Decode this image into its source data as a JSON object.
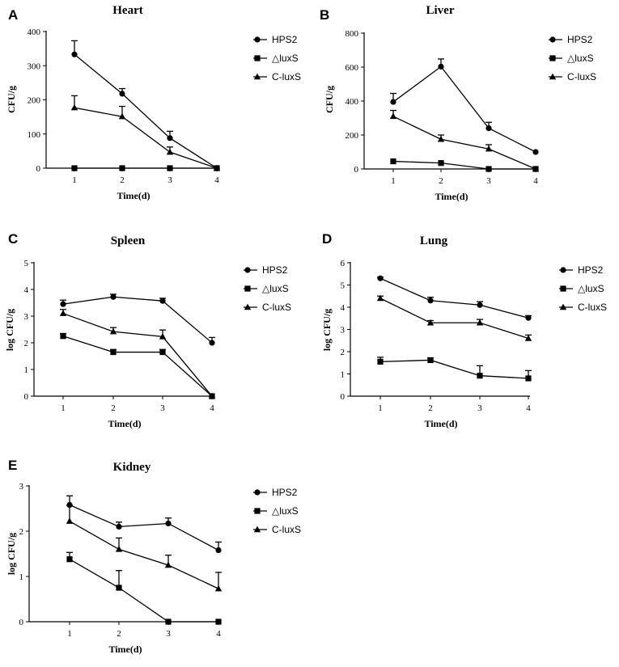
{
  "chart_data": [
    {
      "type": "line",
      "panel": "A",
      "title": "Heart",
      "xlabel": "Time(d)",
      "ylabel": "CFU/g",
      "x": [
        1,
        2,
        3,
        4
      ],
      "xticks": [
        "1",
        "2",
        "3",
        "4"
      ],
      "ylim": [
        0,
        400
      ],
      "yticks": [
        "0",
        "100",
        "200",
        "300",
        "400"
      ],
      "legend": "right",
      "series": [
        {
          "name": "HPS2",
          "marker": "circle",
          "values": [
            333,
            218,
            88,
            0
          ],
          "errors": [
            40,
            15,
            20,
            0
          ]
        },
        {
          "name": "△luxS",
          "marker": "square",
          "values": [
            0,
            0,
            0,
            0
          ],
          "errors": [
            0,
            0,
            0,
            0
          ]
        },
        {
          "name": "C-luxS",
          "marker": "triangle",
          "values": [
            177,
            151,
            47,
            0
          ],
          "errors": [
            35,
            30,
            15,
            0
          ]
        }
      ]
    },
    {
      "type": "line",
      "panel": "B",
      "title": "Liver",
      "xlabel": "Time(d)",
      "ylabel": "CFU/g",
      "x": [
        1,
        2,
        3,
        4
      ],
      "xticks": [
        "1",
        "2",
        "3",
        "4"
      ],
      "ylim": [
        0,
        800
      ],
      "yticks": [
        "0",
        "200",
        "400",
        "600",
        "800"
      ],
      "legend": "right",
      "series": [
        {
          "name": "HPS2",
          "marker": "circle",
          "values": [
            395,
            603,
            240,
            100
          ],
          "errors": [
            50,
            45,
            35,
            0
          ]
        },
        {
          "name": "△luxS",
          "marker": "square",
          "values": [
            45,
            35,
            0,
            0
          ],
          "errors": [
            0,
            0,
            0,
            0
          ]
        },
        {
          "name": "C-luxS",
          "marker": "triangle",
          "values": [
            310,
            175,
            118,
            0
          ],
          "errors": [
            35,
            25,
            25,
            0
          ]
        }
      ]
    },
    {
      "type": "line",
      "panel": "C",
      "title": "Spleen",
      "xlabel": "Time(d)",
      "ylabel": "log CFU/g",
      "x": [
        1,
        2,
        3,
        4
      ],
      "xticks": [
        "1",
        "2",
        "3",
        "4"
      ],
      "ylim": [
        0,
        5
      ],
      "yticks": [
        "0",
        "1",
        "2",
        "3",
        "4",
        "5"
      ],
      "legend": "right",
      "series": [
        {
          "name": "HPS2",
          "marker": "circle",
          "values": [
            3.45,
            3.72,
            3.57,
            2.0
          ],
          "errors": [
            0.15,
            0.1,
            0.1,
            0.2
          ]
        },
        {
          "name": "△luxS",
          "marker": "square",
          "values": [
            2.25,
            1.65,
            1.65,
            0
          ],
          "errors": [
            0.1,
            0.1,
            0.1,
            0
          ]
        },
        {
          "name": "C-luxS",
          "marker": "triangle",
          "values": [
            3.1,
            2.42,
            2.23,
            0
          ],
          "errors": [
            0.15,
            0.15,
            0.25,
            0
          ]
        }
      ]
    },
    {
      "type": "line",
      "panel": "D",
      "title": "Lung",
      "xlabel": "Time(d)",
      "ylabel": "log CFU/g",
      "x": [
        1,
        2,
        3,
        4
      ],
      "xticks": [
        "1",
        "2",
        "3",
        "4"
      ],
      "ylim": [
        0,
        6
      ],
      "yticks": [
        "0",
        "1",
        "2",
        "3",
        "4",
        "5",
        "6"
      ],
      "legend": "right",
      "series": [
        {
          "name": "HPS2",
          "marker": "circle",
          "values": [
            5.3,
            4.3,
            4.1,
            3.52
          ],
          "errors": [
            0.05,
            0.15,
            0.15,
            0.1
          ]
        },
        {
          "name": "△luxS",
          "marker": "square",
          "values": [
            1.55,
            1.62,
            0.92,
            0.8
          ],
          "errors": [
            0.2,
            0.1,
            0.45,
            0.35
          ]
        },
        {
          "name": "C-luxS",
          "marker": "triangle",
          "values": [
            4.4,
            3.3,
            3.3,
            2.6
          ],
          "errors": [
            0.1,
            0.1,
            0.15,
            0.15
          ]
        }
      ]
    },
    {
      "type": "line",
      "panel": "E",
      "title": "Kidney",
      "xlabel": "Time(d)",
      "ylabel": "log CFU/g",
      "x": [
        1,
        2,
        3,
        4
      ],
      "xticks": [
        "1",
        "2",
        "3",
        "4"
      ],
      "ylim": [
        0,
        3
      ],
      "yticks": [
        "0",
        "1",
        "2",
        "3"
      ],
      "legend": "right",
      "series": [
        {
          "name": "HPS2",
          "marker": "circle",
          "values": [
            2.58,
            2.1,
            2.17,
            1.58
          ],
          "errors": [
            0.2,
            0.1,
            0.12,
            0.18
          ]
        },
        {
          "name": "△luxS",
          "marker": "square",
          "values": [
            1.38,
            0.75,
            0,
            0
          ],
          "errors": [
            0.15,
            0.38,
            0,
            0
          ]
        },
        {
          "name": "C-luxS",
          "marker": "triangle",
          "values": [
            2.22,
            1.6,
            1.25,
            0.73
          ],
          "errors": [
            0.35,
            0.25,
            0.22,
            0.36
          ]
        }
      ]
    }
  ]
}
